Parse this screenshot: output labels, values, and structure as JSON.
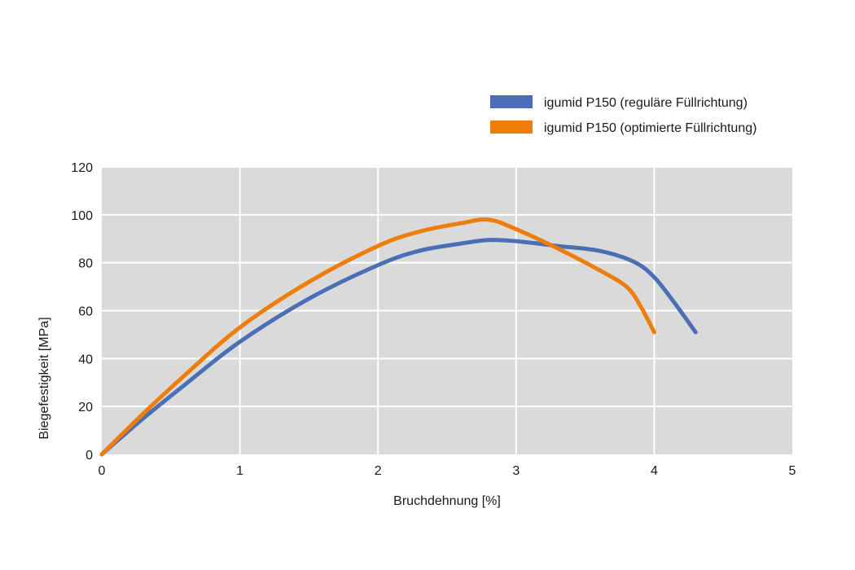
{
  "chart_data": {
    "type": "line",
    "title": "",
    "xlabel": "Bruchdehnung [%]",
    "ylabel": "Biegefestigkeit [MPa]",
    "xlim": [
      0,
      5
    ],
    "ylim": [
      0,
      120
    ],
    "xticks": [
      0,
      1,
      2,
      3,
      4,
      5
    ],
    "yticks": [
      0,
      20,
      40,
      60,
      80,
      100,
      120
    ],
    "x_tick_labels": [
      "0",
      "1",
      "2",
      "3",
      "4",
      "5"
    ],
    "y_tick_labels": [
      "0",
      "20",
      "40",
      "60",
      "80",
      "100",
      "120"
    ],
    "grid": true,
    "plot_background": "#dadada",
    "grid_color": "#ffffff",
    "legend_position": "top-right",
    "series": [
      {
        "name": "igumid P150 (reguläre Füllrichtung)",
        "color": "#4a6fb5",
        "points": [
          [
            0,
            0
          ],
          [
            0.3,
            15
          ],
          [
            0.6,
            29
          ],
          [
            1.0,
            47
          ],
          [
            1.5,
            65
          ],
          [
            2.0,
            79
          ],
          [
            2.3,
            85
          ],
          [
            2.6,
            88
          ],
          [
            2.8,
            89.5
          ],
          [
            3.0,
            89
          ],
          [
            3.3,
            87
          ],
          [
            3.6,
            85
          ],
          [
            3.85,
            80.5
          ],
          [
            4.0,
            74
          ],
          [
            4.15,
            63
          ],
          [
            4.3,
            51
          ]
        ]
      },
      {
        "name": "igumid P150 (optimierte Füllrichtung)",
        "color": "#ef7d0a",
        "points": [
          [
            0,
            0
          ],
          [
            0.3,
            17
          ],
          [
            0.6,
            33
          ],
          [
            1.0,
            53
          ],
          [
            1.5,
            72
          ],
          [
            2.0,
            87
          ],
          [
            2.3,
            93
          ],
          [
            2.6,
            96.5
          ],
          [
            2.8,
            98
          ],
          [
            3.0,
            94
          ],
          [
            3.3,
            86
          ],
          [
            3.6,
            77
          ],
          [
            3.8,
            70
          ],
          [
            3.9,
            62
          ],
          [
            4.0,
            51
          ]
        ]
      }
    ]
  }
}
